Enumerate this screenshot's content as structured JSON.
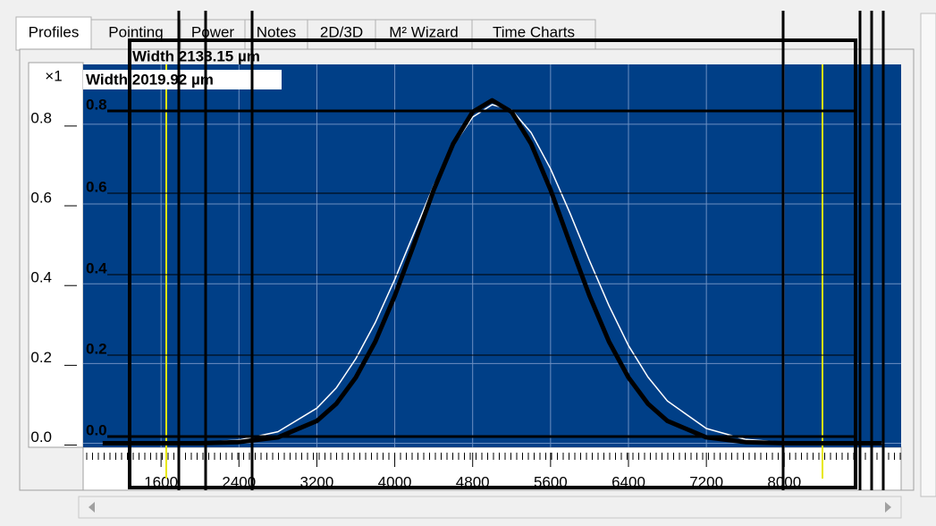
{
  "tabs": [
    "Profiles",
    "Pointing",
    "Power",
    "Notes",
    "2D/3D",
    "M² Wizard",
    "Time Charts"
  ],
  "scale_label": "×1",
  "width_label": "Width 2019.92 µm",
  "overlay": {
    "width_label": "Width 2133.15 µm",
    "y_labels": [
      "0.8",
      "0.6",
      "0.4",
      "0.2",
      "0.0"
    ]
  },
  "chart_data": {
    "type": "line",
    "x": [
      1000,
      2000,
      2400,
      2800,
      3200,
      3400,
      3600,
      3800,
      4000,
      4200,
      4400,
      4600,
      4800,
      5000,
      5200,
      5400,
      5600,
      5800,
      6000,
      6200,
      6400,
      6600,
      6800,
      7200,
      7600,
      8000,
      9000
    ],
    "series": [
      {
        "color": "#ffffff",
        "width": 1.5,
        "values": [
          0.0,
          0.002,
          0.008,
          0.029,
          0.088,
          0.139,
          0.212,
          0.303,
          0.411,
          0.529,
          0.646,
          0.746,
          0.818,
          0.849,
          0.836,
          0.779,
          0.688,
          0.577,
          0.458,
          0.345,
          0.245,
          0.166,
          0.106,
          0.037,
          0.01,
          0.002,
          0.0
        ]
      },
      {
        "color": "#000000",
        "width": 5,
        "values": [
          0.0,
          0.0,
          0.003,
          0.015,
          0.056,
          0.099,
          0.165,
          0.255,
          0.37,
          0.501,
          0.635,
          0.751,
          0.831,
          0.86,
          0.831,
          0.751,
          0.635,
          0.501,
          0.37,
          0.255,
          0.165,
          0.099,
          0.056,
          0.015,
          0.003,
          0.0,
          0.0
        ]
      }
    ],
    "xlim": [
      800,
      9200
    ],
    "ylim": [
      -0.01,
      0.95
    ],
    "xticks": [
      1600,
      2400,
      3200,
      4000,
      4800,
      5600,
      6400,
      7200,
      8000
    ],
    "yticks": [
      {
        "value": 0,
        "label": "0.0"
      },
      0.2,
      0.4,
      0.6,
      0.8
    ],
    "grid": true,
    "background": "#003f87"
  }
}
